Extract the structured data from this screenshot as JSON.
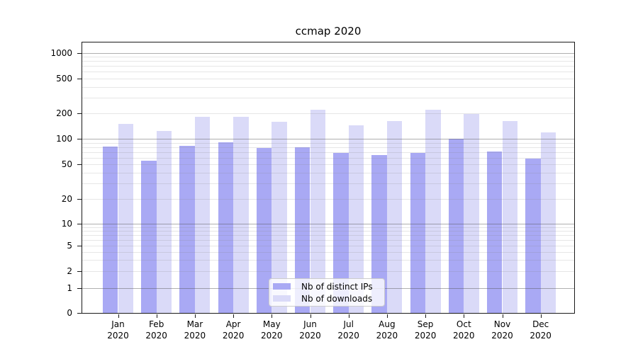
{
  "chart_data": {
    "type": "bar",
    "title": "ccmap 2020",
    "months": [
      "Jan",
      "Feb",
      "Mar",
      "Apr",
      "May",
      "Jun",
      "Jul",
      "Aug",
      "Sep",
      "Oct",
      "Nov",
      "Dec"
    ],
    "year": "2020",
    "series": [
      {
        "name": "Nb of distinct IPs",
        "color": "#a9a9f4",
        "values": [
          81,
          56,
          83,
          91,
          79,
          80,
          69,
          65,
          68,
          101,
          71,
          59
        ]
      },
      {
        "name": "Nb of downloads",
        "color": "#dadaf8",
        "values": [
          150,
          123,
          182,
          182,
          159,
          218,
          143,
          161,
          217,
          197,
          162,
          119
        ]
      }
    ],
    "y_axis": {
      "scale": "symlog",
      "ticks": [
        0,
        1,
        2,
        5,
        10,
        20,
        50,
        100,
        200,
        500,
        1000
      ],
      "major_gridlines": [
        1,
        10,
        100,
        1000
      ],
      "minor_gridlines": [
        2,
        3,
        4,
        5,
        6,
        7,
        8,
        9,
        20,
        30,
        40,
        50,
        60,
        70,
        80,
        90,
        200,
        300,
        400,
        500,
        600,
        700,
        800,
        900
      ],
      "ylim": [
        0,
        1320
      ],
      "scale_anchors": {
        "0": 0,
        "1": 0.0904,
        "2": 0.1536,
        "5": 0.2492,
        "10": 0.3289,
        "20": 0.4227,
        "50": 0.5487,
        "100": 0.6432,
        "200": 0.7388,
        "500": 0.8672,
        "1000": 0.9609
      }
    },
    "grid": true,
    "legend": {
      "position": "lower center"
    }
  }
}
